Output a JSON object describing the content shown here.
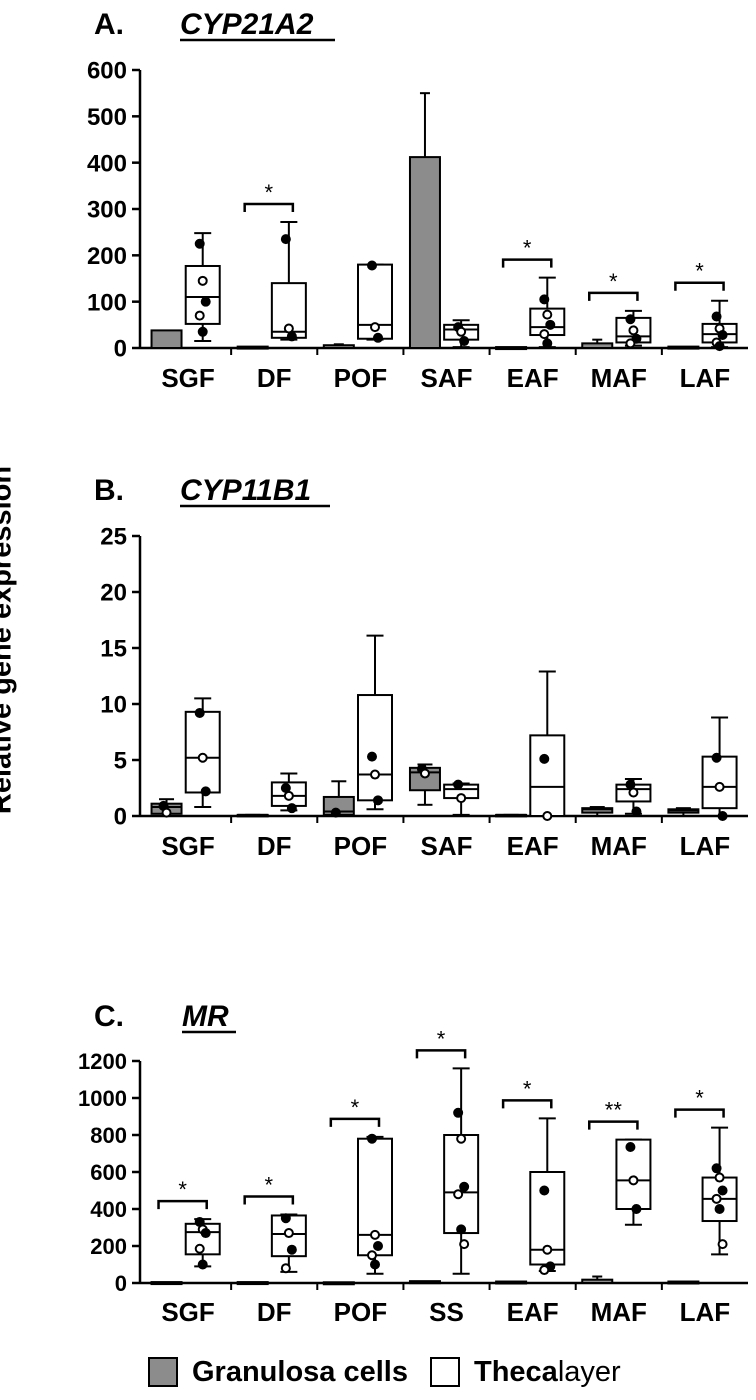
{
  "y_axis_label": "Relative gene expression",
  "legend": {
    "granulosa": {
      "label": "Granulosa cells",
      "color": "#8c8c8c"
    },
    "theca": {
      "label_main": "Theca",
      "label_rest": " layer",
      "color": "#ffffff"
    }
  },
  "chart_data": [
    {
      "type": "box",
      "panel_letter": "A.",
      "title": "CYP21A2",
      "categories": [
        "SGF",
        "DF",
        "POF",
        "SAF",
        "EAF",
        "MAF",
        "LAF"
      ],
      "ylim": [
        0,
        600
      ],
      "yticks": [
        0,
        100,
        200,
        300,
        400,
        500,
        600
      ],
      "series": [
        {
          "name": "Granulosa cells",
          "kind": "bar",
          "values": [
            38,
            3,
            6,
            412,
            2,
            10,
            3
          ],
          "errors": [
            null,
            null,
            8,
            550,
            null,
            18,
            null
          ]
        },
        {
          "name": "Theca layer",
          "kind": "box",
          "stats": [
            {
              "min": 15,
              "q1": 52,
              "median": 110,
              "q3": 177,
              "max": 248,
              "points": [
                225,
                145,
                100,
                70,
                35
              ]
            },
            {
              "min": 18,
              "q1": 22,
              "median": 35,
              "q3": 140,
              "max": 272,
              "points": [
                235,
                42,
                25
              ]
            },
            {
              "min": 18,
              "q1": 20,
              "median": 50,
              "q3": 180,
              "max": 180,
              "points": [
                178,
                45,
                22
              ]
            },
            {
              "min": 2,
              "q1": 18,
              "median": 40,
              "q3": 50,
              "max": 60,
              "points": [
                45,
                35,
                15
              ]
            },
            {
              "min": 2,
              "q1": 28,
              "median": 45,
              "q3": 85,
              "max": 152,
              "points": [
                105,
                72,
                50,
                30,
                10
              ]
            },
            {
              "min": 5,
              "q1": 12,
              "median": 25,
              "q3": 65,
              "max": 80,
              "points": [
                62,
                38,
                20,
                10
              ]
            },
            {
              "min": 2,
              "q1": 12,
              "median": 30,
              "q3": 52,
              "max": 102,
              "points": [
                68,
                42,
                28,
                12,
                4
              ]
            }
          ]
        }
      ],
      "significance": [
        "",
        "*",
        "",
        "",
        "*",
        "*",
        "*"
      ]
    },
    {
      "type": "box",
      "panel_letter": "B.",
      "title": "CYP11B1",
      "categories": [
        "SGF",
        "DF",
        "POF",
        "SAF",
        "EAF",
        "MAF",
        "LAF"
      ],
      "ylim": [
        0,
        25
      ],
      "yticks": [
        0,
        5,
        10,
        15,
        20,
        25
      ],
      "series": [
        {
          "name": "Granulosa cells",
          "kind": "box",
          "stats": [
            {
              "min": 0,
              "q1": 0.2,
              "median": 0.8,
              "q3": 1.1,
              "max": 1.5,
              "points": [
                0.9,
                0.3
              ]
            },
            {
              "min": 0,
              "q1": 0,
              "median": 0.1,
              "q3": 0.1,
              "max": 0.1,
              "points": []
            },
            {
              "min": 0,
              "q1": 0.1,
              "median": 0.4,
              "q3": 1.7,
              "max": 3.1,
              "points": [
                0.3
              ]
            },
            {
              "min": 1,
              "q1": 2.3,
              "median": 3.9,
              "q3": 4.3,
              "max": 4.6,
              "points": [
                4.2,
                3.8
              ]
            },
            {
              "min": 0,
              "q1": 0,
              "median": 0.1,
              "q3": 0.1,
              "max": 0.1,
              "points": []
            },
            {
              "min": 0,
              "q1": 0.3,
              "median": 0.6,
              "q3": 0.7,
              "max": 0.8,
              "points": []
            },
            {
              "min": 0,
              "q1": 0.3,
              "median": 0.5,
              "q3": 0.6,
              "max": 0.7,
              "points": []
            }
          ]
        },
        {
          "name": "Theca layer",
          "kind": "box",
          "stats": [
            {
              "min": 0.8,
              "q1": 2.1,
              "median": 5.2,
              "q3": 9.3,
              "max": 10.5,
              "points": [
                9.2,
                5.2,
                2.2
              ]
            },
            {
              "min": 0.5,
              "q1": 0.9,
              "median": 1.8,
              "q3": 3,
              "max": 3.8,
              "points": [
                2.5,
                1.8,
                0.7
              ]
            },
            {
              "min": 0.6,
              "q1": 1.4,
              "median": 3.7,
              "q3": 10.8,
              "max": 16.1,
              "points": [
                5.3,
                3.7,
                1.4
              ]
            },
            {
              "min": 0.1,
              "q1": 1.6,
              "median": 2.4,
              "q3": 2.8,
              "max": 2.9,
              "points": [
                2.8,
                1.6
              ]
            },
            {
              "min": 0,
              "q1": 0,
              "median": 2.6,
              "q3": 7.2,
              "max": 12.9,
              "points": [
                5.1,
                0
              ]
            },
            {
              "min": 0.2,
              "q1": 1.3,
              "median": 2.4,
              "q3": 2.8,
              "max": 3.3,
              "points": [
                2.8,
                2.1,
                0.4
              ]
            },
            {
              "min": 0,
              "q1": 0.7,
              "median": 2.6,
              "q3": 5.3,
              "max": 8.8,
              "points": [
                5.2,
                2.6,
                0
              ]
            }
          ]
        }
      ],
      "significance": [
        "",
        "",
        "",
        "",
        "",
        "",
        ""
      ]
    },
    {
      "type": "box",
      "panel_letter": "C.",
      "title": "MR",
      "categories": [
        "SGF",
        "DF",
        "POF",
        "SS",
        "EAF",
        "MAF",
        "LAF"
      ],
      "ylim": [
        0,
        1200
      ],
      "yticks": [
        0,
        200,
        400,
        600,
        800,
        1000,
        1200
      ],
      "series": [
        {
          "name": "Granulosa cells",
          "kind": "bar",
          "values": [
            5,
            5,
            4,
            10,
            8,
            18,
            8
          ],
          "errors": [
            null,
            null,
            null,
            null,
            null,
            35,
            null
          ]
        },
        {
          "name": "Theca layer",
          "kind": "box",
          "stats": [
            {
              "min": 90,
              "q1": 155,
              "median": 275,
              "q3": 320,
              "max": 345,
              "points": [
                330,
                290,
                270,
                185,
                100
              ]
            },
            {
              "min": 60,
              "q1": 145,
              "median": 265,
              "q3": 365,
              "max": 370,
              "points": [
                350,
                270,
                180,
                80
              ]
            },
            {
              "min": 50,
              "q1": 150,
              "median": 260,
              "q3": 780,
              "max": 790,
              "points": [
                780,
                260,
                200,
                150,
                100
              ]
            },
            {
              "min": 50,
              "q1": 270,
              "median": 490,
              "q3": 800,
              "max": 1160,
              "points": [
                920,
                780,
                520,
                480,
                290,
                210
              ]
            },
            {
              "min": 65,
              "q1": 100,
              "median": 180,
              "q3": 600,
              "max": 890,
              "points": [
                500,
                180,
                90,
                70
              ]
            },
            {
              "min": 315,
              "q1": 400,
              "median": 555,
              "q3": 775,
              "max": 775,
              "points": [
                735,
                555,
                400
              ]
            },
            {
              "min": 155,
              "q1": 335,
              "median": 455,
              "q3": 570,
              "max": 840,
              "points": [
                620,
                570,
                500,
                455,
                400,
                210
              ]
            }
          ]
        }
      ],
      "significance": [
        "*",
        "*",
        "*",
        "*",
        "*",
        "**",
        "*"
      ]
    }
  ]
}
